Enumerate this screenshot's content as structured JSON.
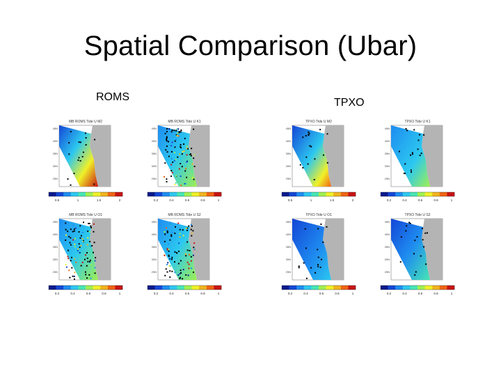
{
  "slide": {
    "title": "Spatial Comparison (Ubar)"
  },
  "columns": [
    {
      "label": "ROMS"
    },
    {
      "label": "TPXO"
    }
  ],
  "panels": [
    {
      "title": "MB ROMS Tide U M2",
      "colorbar_ticks": [
        "0.5",
        "1",
        "1.5",
        "2"
      ]
    },
    {
      "title": "MB ROMS Tide U K1",
      "colorbar_ticks": [
        "0.2",
        "0.4",
        "0.6",
        "0.8",
        "1"
      ]
    },
    {
      "title": "TPXO Tide U M2",
      "colorbar_ticks": [
        "0.5",
        "1",
        "1.5",
        "2"
      ]
    },
    {
      "title": "TPXO Tide U K1",
      "colorbar_ticks": [
        "0.2",
        "0.4",
        "0.6",
        "0.8",
        "1"
      ]
    },
    {
      "title": "MB ROMS Tide U O1",
      "colorbar_ticks": [
        "0.2",
        "0.4",
        "0.6",
        "0.8",
        "1"
      ]
    },
    {
      "title": "MB ROMS Tide U S2",
      "colorbar_ticks": [
        "0.2",
        "0.4",
        "0.6",
        "0.8",
        "1"
      ]
    },
    {
      "title": "TPXO Tide U O1",
      "colorbar_ticks": [
        "0.2",
        "0.4",
        "0.6",
        "0.8",
        "1"
      ]
    },
    {
      "title": "TPXO Tide U S2",
      "colorbar_ticks": [
        "0.2",
        "0.4",
        "0.6",
        "0.8",
        "1"
      ]
    }
  ],
  "colors": {
    "colormap": [
      "#0a1a8c",
      "#1446d6",
      "#1e8cf0",
      "#2cc8f0",
      "#46e6b4",
      "#a0f050",
      "#f0f028",
      "#f0b41e",
      "#f06414",
      "#c81414"
    ],
    "land": "#b4b4b4"
  }
}
